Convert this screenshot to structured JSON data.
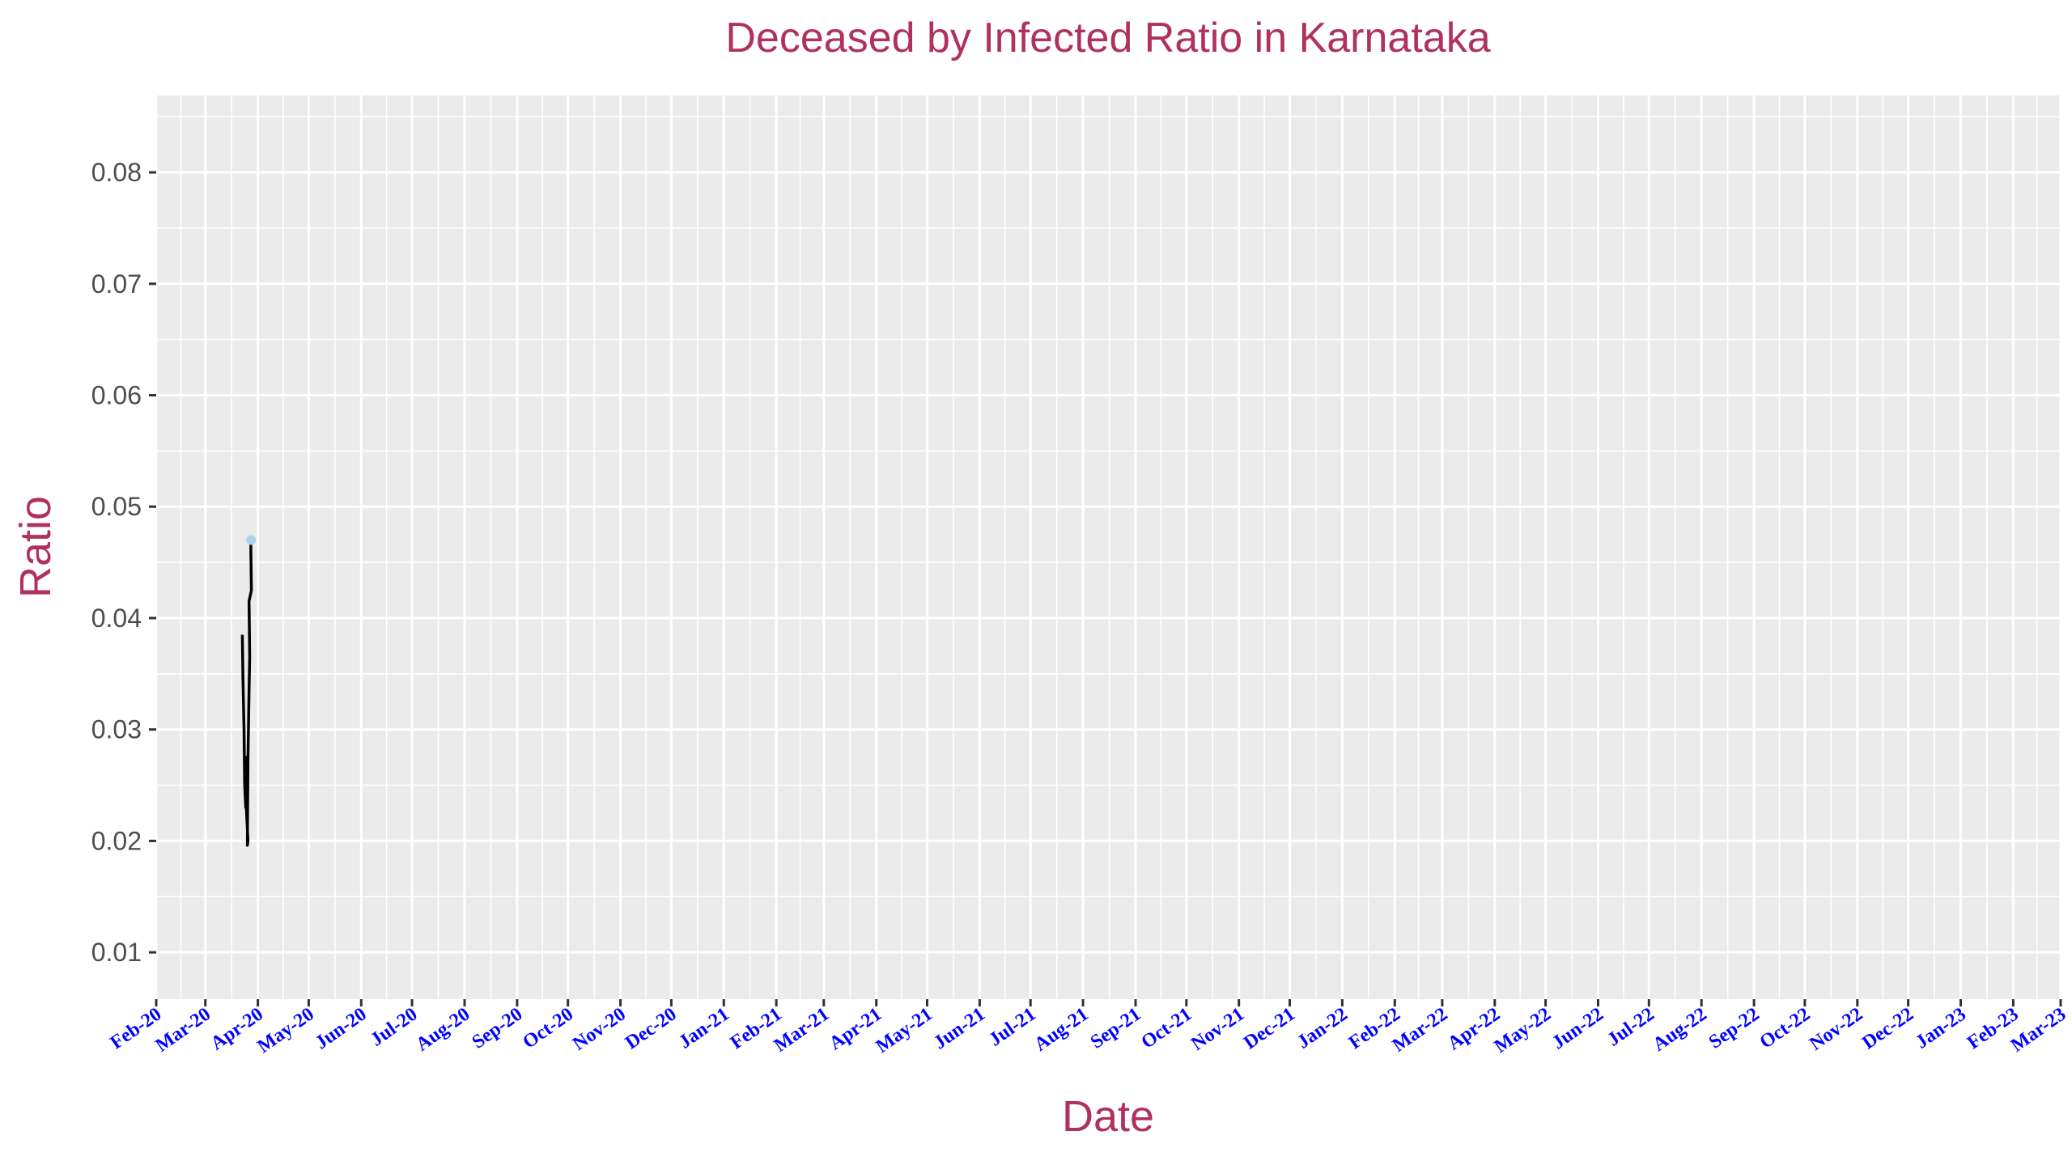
{
  "chart_data": {
    "type": "line",
    "title": "Deceased by Infected Ratio in Karnataka",
    "xlabel": "Date",
    "ylabel": "Ratio",
    "x_ticks": [
      "2020-02-01",
      "2020-03-01",
      "2020-04-01",
      "2020-05-01",
      "2020-06-01",
      "2020-07-01",
      "2020-08-01",
      "2020-09-01",
      "2020-10-01",
      "2020-11-01",
      "2020-12-01",
      "2021-01-01",
      "2021-02-01",
      "2021-03-01",
      "2021-04-01",
      "2021-05-01",
      "2021-06-01",
      "2021-07-01",
      "2021-08-01",
      "2021-09-01",
      "2021-10-01",
      "2021-11-01",
      "2021-12-01",
      "2022-01-01",
      "2022-02-01",
      "2022-03-01",
      "2022-04-01",
      "2022-05-01",
      "2022-06-01",
      "2022-07-01",
      "2022-08-01",
      "2022-09-01",
      "2022-10-01",
      "2022-11-01",
      "2022-12-01",
      "2023-01-01",
      "2023-02-01",
      "2023-03-01"
    ],
    "x_tick_labels": [
      "Feb-20",
      "Mar-20",
      "Apr-20",
      "May-20",
      "Jun-20",
      "Jul-20",
      "Aug-20",
      "Sep-20",
      "Oct-20",
      "Nov-20",
      "Dec-20",
      "Jan-21",
      "Feb-21",
      "Mar-21",
      "Apr-21",
      "May-21",
      "Jun-21",
      "Jul-21",
      "Aug-21",
      "Sep-21",
      "Oct-21",
      "Nov-21",
      "Dec-21",
      "Jan-22",
      "Feb-22",
      "Mar-22",
      "Apr-22",
      "May-22",
      "Jun-22",
      "Jul-22",
      "Aug-22",
      "Sep-22",
      "Oct-22",
      "Nov-22",
      "Dec-22",
      "Jan-23",
      "Feb-23",
      "Mar-23"
    ],
    "xlim": [
      "2020-02-01",
      "2023-03-01"
    ],
    "y_ticks": [
      0.01,
      0.02,
      0.03,
      0.04,
      0.05,
      0.06,
      0.07,
      0.08
    ],
    "y_tick_labels": [
      "0.01",
      "0.02",
      "0.03",
      "0.04",
      "0.05",
      "0.06",
      "0.07",
      "0.08"
    ],
    "ylim": [
      0.0058,
      0.0869
    ],
    "grid": true,
    "series": [
      {
        "line_color": "#000000",
        "points": [
          {
            "x": "2020-03-23",
            "y": 0.0385
          },
          {
            "x": "2020-03-23",
            "y": 0.0345
          },
          {
            "x": "2020-03-24",
            "y": 0.03
          },
          {
            "x": "2020-03-24",
            "y": 0.025
          },
          {
            "x": "2020-03-25",
            "y": 0.023
          },
          {
            "x": "2020-03-25",
            "y": 0.0275
          },
          {
            "x": "2020-03-25",
            "y": 0.024
          },
          {
            "x": "2020-03-26",
            "y": 0.02
          },
          {
            "x": "2020-03-26",
            "y": 0.0196
          },
          {
            "x": "2020-03-26",
            "y": 0.0275
          },
          {
            "x": "2020-03-27",
            "y": 0.0335
          },
          {
            "x": "2020-03-27",
            "y": 0.0365
          },
          {
            "x": "2020-03-27",
            "y": 0.0415
          },
          {
            "x": "2020-03-28",
            "y": 0.0425
          },
          {
            "x": "2020-03-28",
            "y": 0.047
          }
        ]
      }
    ],
    "highlight_point": {
      "x": "2020-03-28",
      "y": 0.047,
      "color": "#a6d4ea"
    }
  }
}
